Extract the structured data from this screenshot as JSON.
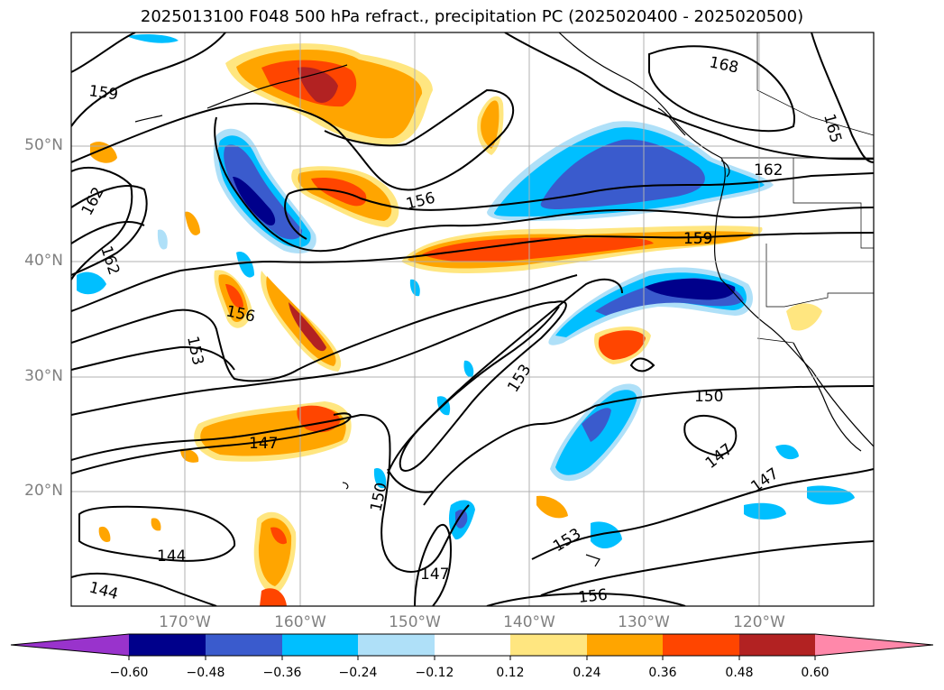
{
  "title": "2025013100 F048 500 hPa refract., precipitation PC (2025020400 - 2025020500)",
  "map": {
    "lat_labels": [
      "50°N",
      "40°N",
      "30°N",
      "20°N"
    ],
    "lon_labels": [
      "170°W",
      "160°W",
      "150°W",
      "140°W",
      "130°W",
      "120°W"
    ],
    "contour_labels": [
      "168",
      "165",
      "162",
      "159",
      "159",
      "162",
      "162",
      "156",
      "156",
      "159",
      "153",
      "153",
      "150",
      "150",
      "147",
      "147",
      "147",
      "147",
      "144",
      "144",
      "153",
      "156"
    ],
    "colors": {
      "neg_extreme": "#9933cc",
      "neg_060": "#00008b",
      "neg_048": "#3a5bcd",
      "neg_036": "#00bfff",
      "neg_024": "#afe0f8",
      "neutral": "#ffffff",
      "pos_012": "#ffe680",
      "pos_024": "#ffa500",
      "pos_036": "#ff4500",
      "pos_048": "#b22222",
      "pos_extreme": "#ff88aa"
    }
  },
  "colorbar": {
    "ticks": [
      "−0.60",
      "−0.48",
      "−0.36",
      "−0.24",
      "−0.12",
      "0.12",
      "0.24",
      "0.36",
      "0.48",
      "0.60"
    ],
    "colors": [
      "#9933cc",
      "#00008b",
      "#3a5bcd",
      "#4169e1",
      "#00bfff",
      "#afe0f8",
      "#ffffff",
      "#ffe680",
      "#ffa500",
      "#ff4500",
      "#b22222",
      "#ff88aa"
    ]
  }
}
